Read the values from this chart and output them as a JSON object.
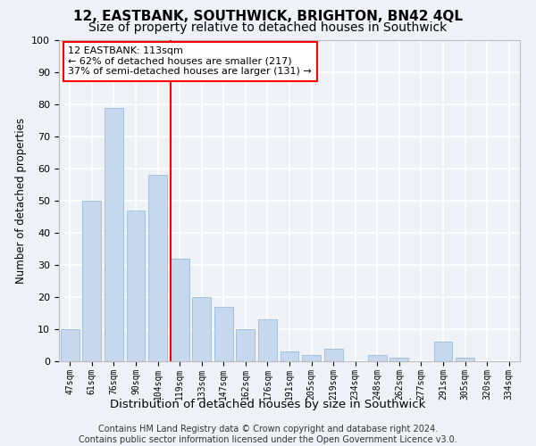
{
  "title1": "12, EASTBANK, SOUTHWICK, BRIGHTON, BN42 4QL",
  "title2": "Size of property relative to detached houses in Southwick",
  "xlabel": "Distribution of detached houses by size in Southwick",
  "ylabel": "Number of detached properties",
  "categories": [
    "47sqm",
    "61sqm",
    "76sqm",
    "90sqm",
    "104sqm",
    "119sqm",
    "133sqm",
    "147sqm",
    "162sqm",
    "176sqm",
    "191sqm",
    "205sqm",
    "219sqm",
    "234sqm",
    "248sqm",
    "262sqm",
    "277sqm",
    "291sqm",
    "305sqm",
    "320sqm",
    "334sqm"
  ],
  "values": [
    10,
    50,
    79,
    47,
    58,
    32,
    20,
    17,
    10,
    13,
    3,
    2,
    4,
    0,
    2,
    1,
    0,
    6,
    1,
    0,
    0
  ],
  "bar_color": "#c5d8ee",
  "bar_edge_color": "#9bbbd8",
  "vline_color": "red",
  "annotation_line1": "12 EASTBANK: 113sqm",
  "annotation_line2": "← 62% of detached houses are smaller (217)",
  "annotation_line3": "37% of semi-detached houses are larger (131) →",
  "annotation_box_color": "white",
  "annotation_border_color": "red",
  "footer_text": "Contains HM Land Registry data © Crown copyright and database right 2024.\nContains public sector information licensed under the Open Government Licence v3.0.",
  "ylim": [
    0,
    100
  ],
  "yticks": [
    0,
    10,
    20,
    30,
    40,
    50,
    60,
    70,
    80,
    90,
    100
  ],
  "bg_color": "#eef2f7",
  "grid_color": "white",
  "title1_fontsize": 11,
  "title2_fontsize": 10,
  "xlabel_fontsize": 9.5,
  "ylabel_fontsize": 8.5,
  "footer_fontsize": 7,
  "tick_fontsize": 7,
  "ytick_fontsize": 8,
  "annot_fontsize": 8
}
